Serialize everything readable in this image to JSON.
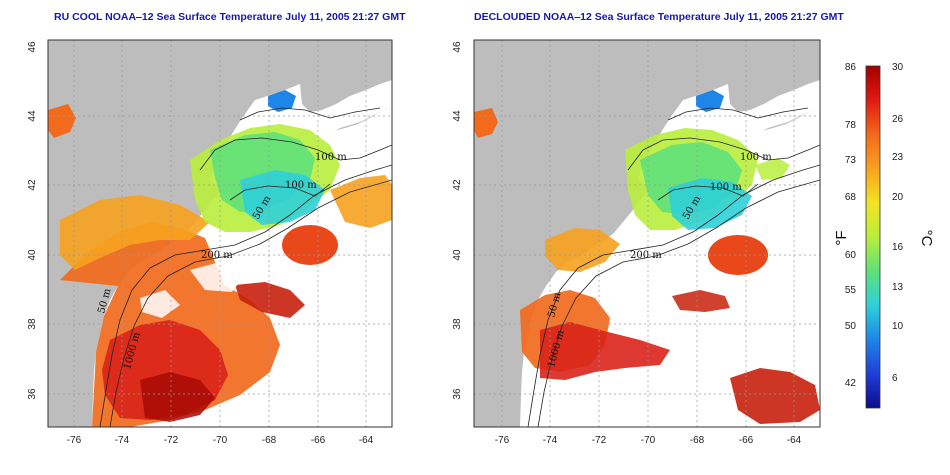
{
  "panels": [
    {
      "title": "RU COOL NOAA‒12 Sea Surface Temperature July 11, 2005 21:27 GMT",
      "lat_ticks": [
        "46",
        "44",
        "42",
        "40",
        "38",
        "36"
      ],
      "lon_ticks": [
        "-76",
        "-74",
        "-72",
        "-70",
        "-68",
        "-66",
        "-64"
      ],
      "contour_labels": [
        "100 m",
        "100 m",
        "50 m",
        "200 m",
        "50 m",
        "1000 m"
      ]
    },
    {
      "title": "DECLOUDED NOAA‒12 Sea Surface Temperature July 11, 2005 21:27 GMT",
      "lat_ticks": [
        "46",
        "44",
        "42",
        "40",
        "38",
        "36"
      ],
      "lon_ticks": [
        "-76",
        "-74",
        "-72",
        "-70",
        "-68",
        "-66",
        "-64"
      ],
      "contour_labels": [
        "100 m",
        "100 m",
        "50 m",
        "200 m",
        "50 m",
        "1000 m"
      ]
    }
  ],
  "colorbar": {
    "fahrenheit_labels": [
      "86",
      "78",
      "73",
      "68",
      "60",
      "55",
      "50",
      "42"
    ],
    "celsius_labels": [
      "30",
      "26",
      "23",
      "20",
      "16",
      "13",
      "10",
      "6"
    ],
    "fahrenheit_unit": "°F",
    "celsius_unit": "°C",
    "gradient_colors": [
      "#a40000",
      "#e01a10",
      "#f26a1c",
      "#f7a21e",
      "#f2e422",
      "#b9ee3c",
      "#5fe07a",
      "#2fd0d8",
      "#1e86e8",
      "#1e3fd8",
      "#0c0c8c"
    ]
  }
}
